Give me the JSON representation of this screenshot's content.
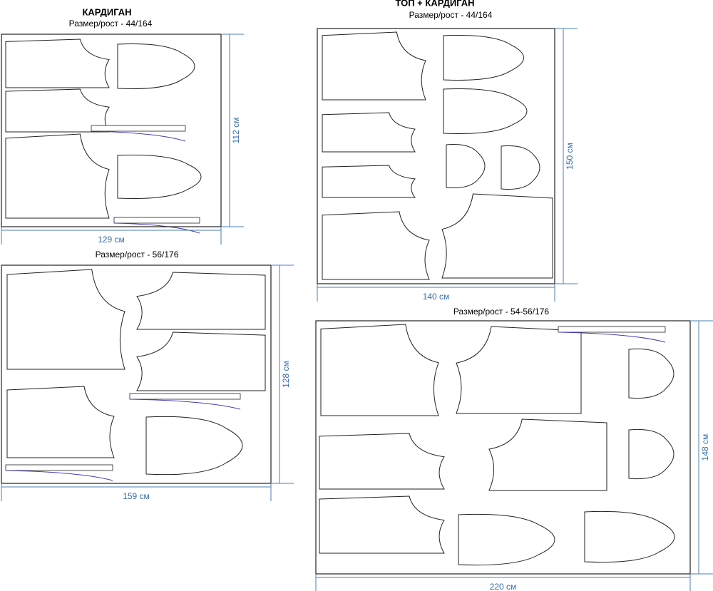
{
  "panels": [
    {
      "title": "КАРДИГАН",
      "subtitle": "Размер/рост - 44/164",
      "height": "112 см",
      "width": "129 см"
    },
    {
      "title": "ТОП + КАРДИГАН",
      "subtitle": "Размер/рост - 44/164",
      "height": "150 см",
      "width": "140 см"
    },
    {
      "subtitle": "Размер/рост - 56/176",
      "height": "128 см",
      "width": "159 см"
    },
    {
      "subtitle": "Размер/рост - 54-56/176",
      "height": "148 см",
      "width": "220 см"
    }
  ]
}
